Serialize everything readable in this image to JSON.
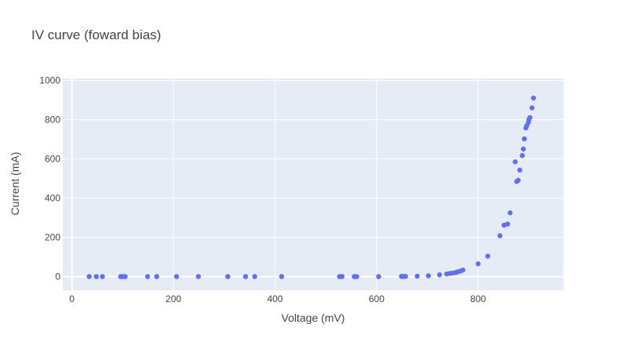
{
  "chart_data": {
    "type": "scatter",
    "title": "IV curve (foward bias)",
    "xlabel": "Voltage (mV)",
    "ylabel": "Current (mA)",
    "xlim": [
      -18,
      968
    ],
    "ylim": [
      -70,
      1010
    ],
    "xticks": [
      0,
      200,
      400,
      600,
      800
    ],
    "yticks": [
      0,
      200,
      400,
      600,
      800,
      1000
    ],
    "grid": true,
    "colors": {
      "plot_bg": "#e5ecf6",
      "grid": "#ffffff",
      "marker": "#636efa",
      "text": "#444444",
      "title": "#444444"
    },
    "series": [
      {
        "x": [
          34,
          48,
          60,
          96,
          100,
          105,
          149,
          167,
          206,
          249,
          307,
          342,
          360,
          413,
          527,
          532,
          556,
          561,
          604,
          649,
          653,
          657,
          680,
          702,
          724,
          738,
          744,
          750,
          756,
          760,
          765,
          770,
          800,
          819,
          843,
          851,
          858,
          863,
          873,
          876,
          879,
          882,
          887,
          889,
          891,
          894,
          896,
          899,
          900,
          902,
          906,
          909
        ],
        "y": [
          0,
          0,
          0,
          0,
          0,
          0,
          0,
          0,
          0,
          0,
          0,
          0,
          0,
          0,
          0,
          0,
          0,
          0,
          0,
          1,
          1,
          1,
          2,
          4,
          9,
          13,
          16,
          18,
          21,
          24,
          28,
          33,
          65,
          104,
          208,
          262,
          268,
          325,
          585,
          485,
          491,
          543,
          617,
          650,
          702,
          758,
          770,
          786,
          800,
          810,
          860,
          910
        ]
      }
    ]
  }
}
